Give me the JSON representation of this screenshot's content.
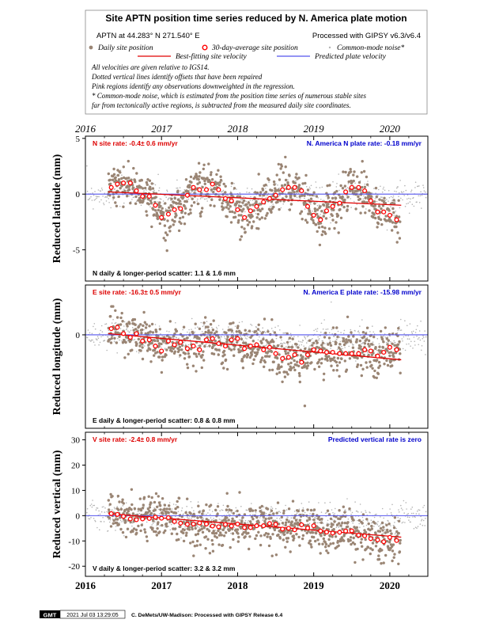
{
  "header": {
    "title": "Site APTN position time series reduced by N. America plate motion",
    "site_coords": "APTN at 44.283° N 271.540° E",
    "processed": "Processed with GIPSY v6.3/v6.4",
    "legend": {
      "daily": "Daily site position",
      "avg30": "30-day-average site position",
      "cmn": "Common-mode noise*",
      "best_fit": "Best-fitting site velocity",
      "predicted": "Predicted plate velocity"
    },
    "notes": [
      "All velocities are given relative to IGS14.",
      "Dotted vertical lines identify offsets that have been repaired",
      "Pink regions identify any observations downweighted in the regression.",
      "* Common-mode noise, which is estimated from the position time series of numerous stable sites",
      "far from tectonically active regions, is subtracted from the measured daily site coordinates."
    ]
  },
  "colors": {
    "daily": "#9a8574",
    "cmn": "#b4b4b4",
    "avg30": "#ff0000",
    "best_fit": "#e00000",
    "predicted": "#5555ee",
    "rate_text_red": "#dd0000",
    "rate_text_blue": "#0000cc"
  },
  "footer": {
    "logo": "GMT",
    "timestamp": "2021 Jul 03 13:29:05",
    "credit": "C. DeMets/UW-Madison: Processed with GIPSY Release 6.4"
  },
  "chart_data": [
    {
      "type": "scatter",
      "component": "N",
      "ylabel": "Reduced latitude (mm)",
      "xlim": [
        2016.0,
        2020.5
      ],
      "ylim": [
        -7.8,
        5.2
      ],
      "yticks": [
        -5,
        0,
        5
      ],
      "xticks": [
        "2016",
        "2017",
        "2018",
        "2019",
        "2020"
      ],
      "site_rate_text": "N site rate:  -0.4± 0.6 mm/yr",
      "plate_rate_text": "N. America N plate rate: -0.18 mm/yr",
      "scatter_text": "N daily & longer-period scatter:   1.1 &   1.6 mm",
      "best_fit": {
        "x": [
          2016.3,
          2020.15
        ],
        "y": [
          0.2,
          -1.0
        ]
      },
      "predicted_y": 0,
      "series": [
        {
          "name": "30-day-average site position",
          "x": [
            2016.34,
            2016.42,
            2016.5,
            2016.59,
            2016.67,
            2016.75,
            2016.84,
            2016.92,
            2017.0,
            2017.09,
            2017.17,
            2017.25,
            2017.34,
            2017.42,
            2017.5,
            2017.59,
            2017.67,
            2017.75,
            2017.84,
            2017.92,
            2018.0,
            2018.09,
            2018.17,
            2018.25,
            2018.34,
            2018.42,
            2018.5,
            2018.59,
            2018.67,
            2018.75,
            2018.84,
            2018.92,
            2019.0,
            2019.09,
            2019.17,
            2019.25,
            2019.34,
            2019.42,
            2019.5,
            2019.59,
            2019.67,
            2019.75,
            2019.84,
            2019.92,
            2020.0,
            2020.09
          ],
          "y": [
            0.6,
            0.9,
            1.0,
            1.0,
            0.3,
            -0.2,
            -0.2,
            -1.0,
            -2.1,
            -1.8,
            -1.4,
            -1.3,
            -0.1,
            0.6,
            0.4,
            0.4,
            0.9,
            0.4,
            -0.4,
            -0.6,
            -1.4,
            -2.1,
            -1.5,
            -1.1,
            -0.7,
            -0.4,
            -0.1,
            0.4,
            0.6,
            0.6,
            0.3,
            -1.1,
            -1.9,
            -2.3,
            -1.5,
            -1.1,
            -0.8,
            0.2,
            0.6,
            0.6,
            0.3,
            -0.6,
            -1.6,
            -1.6,
            -1.9,
            -2.3
          ]
        }
      ]
    },
    {
      "type": "scatter",
      "component": "E",
      "ylabel": "Reduced longitude (mm)",
      "xlim": [
        2016.0,
        2020.5
      ],
      "ylim": [
        -7.5,
        4.0
      ],
      "yticks": [
        0
      ],
      "xticks": [
        "2016",
        "2017",
        "2018",
        "2019",
        "2020"
      ],
      "site_rate_text": "E site rate:  -16.3± 0.5 mm/yr",
      "plate_rate_text": "N. America E plate rate: -15.98 mm/yr",
      "scatter_text": "E daily & longer-period scatter:   0.8 &   0.8 mm",
      "best_fit": {
        "x": [
          2016.3,
          2020.15
        ],
        "y": [
          0.1,
          -2.0
        ]
      },
      "predicted_y": 0,
      "series": [
        {
          "name": "30-day-average site position",
          "x": [
            2016.34,
            2016.42,
            2016.5,
            2016.59,
            2016.67,
            2016.75,
            2016.84,
            2016.92,
            2017.0,
            2017.09,
            2017.17,
            2017.25,
            2017.34,
            2017.42,
            2017.5,
            2017.59,
            2017.67,
            2017.75,
            2017.84,
            2017.92,
            2018.0,
            2018.09,
            2018.17,
            2018.25,
            2018.34,
            2018.42,
            2018.5,
            2018.59,
            2018.67,
            2018.75,
            2018.84,
            2018.92,
            2019.0,
            2019.09,
            2019.17,
            2019.25,
            2019.34,
            2019.42,
            2019.5,
            2019.59,
            2019.67,
            2019.75,
            2019.84,
            2019.92,
            2020.0,
            2020.09
          ],
          "y": [
            0.5,
            0.6,
            0.1,
            -0.2,
            0.1,
            -0.5,
            -0.4,
            -0.9,
            -1.3,
            -0.5,
            -0.8,
            -0.6,
            -1.1,
            -0.9,
            -1.2,
            -0.4,
            -0.3,
            -0.7,
            -0.9,
            -0.4,
            -0.3,
            -1.1,
            -0.9,
            -0.8,
            -1.2,
            -1.0,
            -1.5,
            -1.9,
            -1.8,
            -1.6,
            -2.2,
            -1.6,
            -1.2,
            -1.3,
            -1.4,
            -1.4,
            -1.5,
            -1.5,
            -1.5,
            -1.5,
            -1.2,
            -1.3,
            -1.7,
            -1.4,
            -1.0,
            -1.2
          ]
        }
      ]
    },
    {
      "type": "scatter",
      "component": "V",
      "ylabel": "Reduced vertical (mm)",
      "xlim": [
        2016.0,
        2020.5
      ],
      "ylim": [
        -24,
        33
      ],
      "yticks": [
        -20,
        -10,
        0,
        10,
        20,
        30
      ],
      "xticks": [
        "2016",
        "2017",
        "2018",
        "2019",
        "2020"
      ],
      "site_rate_text": "V site rate:  -2.4± 0.8 mm/yr",
      "plate_rate_text": "Predicted vertical rate is zero",
      "scatter_text": "V daily & longer-period scatter:   3.2 &   3.2 mm",
      "best_fit": {
        "x": [
          2016.3,
          2020.15
        ],
        "y": [
          0.8,
          -8.5
        ]
      },
      "predicted_y": 0,
      "series": [
        {
          "name": "30-day-average site position",
          "x": [
            2016.34,
            2016.42,
            2016.5,
            2016.59,
            2016.67,
            2016.75,
            2016.84,
            2016.92,
            2017.0,
            2017.09,
            2017.17,
            2017.25,
            2017.34,
            2017.42,
            2017.5,
            2017.59,
            2017.67,
            2017.75,
            2017.84,
            2017.92,
            2018.0,
            2018.09,
            2018.17,
            2018.25,
            2018.34,
            2018.42,
            2018.5,
            2018.59,
            2018.67,
            2018.75,
            2018.84,
            2018.92,
            2019.0,
            2019.09,
            2019.17,
            2019.25,
            2019.34,
            2019.42,
            2019.5,
            2019.59,
            2019.67,
            2019.75,
            2019.84,
            2019.92,
            2020.0,
            2020.09
          ],
          "y": [
            0.8,
            0.5,
            -0.3,
            -1.3,
            -1.6,
            -1.3,
            -1.1,
            -0.6,
            -1.0,
            -0.8,
            -2.3,
            -3.0,
            -3.4,
            -3.3,
            -2.9,
            -3.3,
            -4.1,
            -4.4,
            -3.5,
            -4.1,
            -3.3,
            -4.7,
            -4.7,
            -4.0,
            -4.0,
            -3.1,
            -3.4,
            -5.3,
            -5.0,
            -5.6,
            -3.6,
            -4.9,
            -4.0,
            -6.1,
            -6.5,
            -6.9,
            -6.6,
            -6.1,
            -6.0,
            -7.7,
            -8.0,
            -9.1,
            -9.6,
            -10.3,
            -8.6,
            -9.8
          ]
        }
      ]
    }
  ]
}
